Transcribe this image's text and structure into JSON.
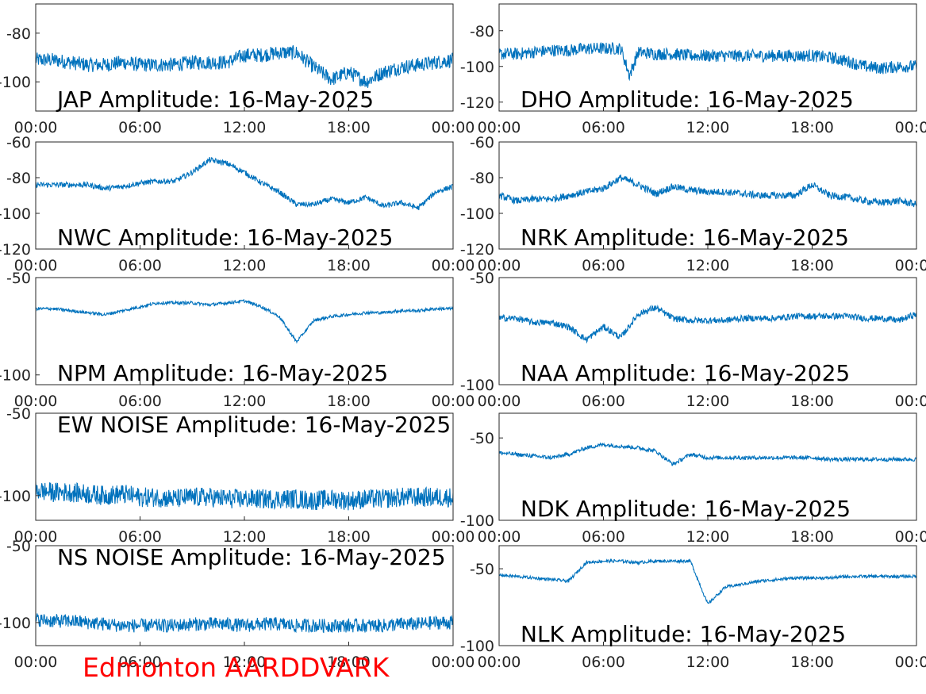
{
  "footer_text": "Edmonton AARDDVARK",
  "colors": {
    "trace": "#0072BD",
    "axis": "#262626",
    "footer": "#ff0000"
  },
  "chart_data": [
    {
      "type": "line",
      "title": "JAP Amplitude: 16-May-2025",
      "x_ticks": [
        "00:00",
        "06:00",
        "12:00",
        "18:00",
        "00:00"
      ],
      "y_ticks": [
        "-80",
        "-100"
      ],
      "y_tick_values": [
        -80,
        -100
      ],
      "ylim": [
        -112,
        -68
      ],
      "hours": [
        0,
        1,
        2,
        3,
        4,
        5,
        6,
        7,
        8,
        9,
        10,
        11,
        12,
        13,
        14,
        15,
        16,
        17,
        18,
        19,
        20,
        21,
        22,
        23,
        24
      ],
      "amplitude": [
        -91,
        -91,
        -92,
        -93,
        -93,
        -92,
        -93,
        -93,
        -93,
        -92,
        -92,
        -92,
        -89,
        -89,
        -88,
        -88,
        -94,
        -99,
        -96,
        -100,
        -96,
        -94,
        -93,
        -92,
        -91
      ],
      "noise": 3
    },
    {
      "type": "line",
      "title": "DHO Amplitude: 16-May-2025",
      "x_ticks": [
        "00:00",
        "06:00",
        "12:00",
        "18:00",
        "00:00"
      ],
      "y_ticks": [
        "-80",
        "-100",
        "-120"
      ],
      "y_tick_values": [
        -80,
        -100,
        -120
      ],
      "ylim": [
        -125,
        -65
      ],
      "hours": [
        0,
        1,
        2,
        3,
        4,
        5,
        6,
        7,
        7.5,
        8,
        9,
        10,
        11,
        12,
        13,
        14,
        15,
        16,
        17,
        18,
        19,
        20,
        21,
        22,
        23,
        24
      ],
      "amplitude": [
        -93,
        -93,
        -92,
        -91,
        -91,
        -90,
        -90,
        -90,
        -105,
        -92,
        -93,
        -93,
        -94,
        -94,
        -94,
        -94,
        -94,
        -94,
        -94,
        -94,
        -95,
        -97,
        -100,
        -101,
        -100,
        -100
      ],
      "noise": 3.5
    },
    {
      "type": "line",
      "title": "NWC Amplitude: 16-May-2025",
      "x_ticks": [
        "00:00",
        "06:00",
        "12:00",
        "18:00",
        "00:00"
      ],
      "y_ticks": [
        "-60",
        "-80",
        "-100",
        "-120"
      ],
      "y_tick_values": [
        -60,
        -80,
        -100,
        -120
      ],
      "ylim": [
        -120,
        -60
      ],
      "hours": [
        0,
        1,
        2,
        3,
        4,
        5,
        6,
        7,
        8,
        9,
        10,
        11,
        12,
        13,
        14,
        15,
        16,
        17,
        18,
        19,
        20,
        21,
        22,
        23,
        24
      ],
      "amplitude": [
        -84,
        -84,
        -84,
        -84,
        -86,
        -85,
        -83,
        -82,
        -82,
        -77,
        -70,
        -72,
        -77,
        -83,
        -88,
        -95,
        -95,
        -92,
        -94,
        -91,
        -96,
        -94,
        -97,
        -88,
        -85
      ],
      "noise": 1.5
    },
    {
      "type": "line",
      "title": "NRK Amplitude: 16-May-2025",
      "x_ticks": [
        "00:00",
        "06:00",
        "12:00",
        "18:00",
        "00:00"
      ],
      "y_ticks": [
        "-60",
        "-80",
        "-100",
        "-120"
      ],
      "y_tick_values": [
        -60,
        -80,
        -100,
        -120
      ],
      "ylim": [
        -120,
        -60
      ],
      "hours": [
        0,
        1,
        2,
        3,
        4,
        5,
        6,
        7,
        8,
        9,
        10,
        11,
        12,
        13,
        14,
        15,
        16,
        17,
        18,
        19,
        20,
        21,
        22,
        23,
        24
      ],
      "amplitude": [
        -90,
        -93,
        -92,
        -92,
        -90,
        -88,
        -86,
        -80,
        -84,
        -89,
        -85,
        -87,
        -88,
        -88,
        -89,
        -90,
        -90,
        -90,
        -84,
        -90,
        -91,
        -93,
        -94,
        -93,
        -95
      ],
      "noise": 2
    },
    {
      "type": "line",
      "title": "NPM Amplitude: 16-May-2025",
      "x_ticks": [
        "00:00",
        "06:00",
        "12:00",
        "18:00",
        "00:00"
      ],
      "y_ticks": [
        "-50",
        "-100"
      ],
      "y_tick_values": [
        -50,
        -100
      ],
      "ylim": [
        -105,
        -50
      ],
      "hours": [
        0,
        1,
        2,
        3,
        4,
        5,
        6,
        7,
        8,
        9,
        10,
        11,
        12,
        13,
        14,
        15,
        16,
        17,
        18,
        19,
        20,
        21,
        22,
        23,
        24
      ],
      "amplitude": [
        -66,
        -66,
        -67,
        -68,
        -69,
        -67,
        -65,
        -63,
        -63,
        -63,
        -64,
        -63,
        -62,
        -65,
        -70,
        -83,
        -72,
        -70,
        -69,
        -68,
        -68,
        -67,
        -67,
        -66,
        -66
      ],
      "noise": 0.8
    },
    {
      "type": "line",
      "title": "NAA Amplitude: 16-May-2025",
      "x_ticks": [
        "00:00",
        "06:00",
        "12:00",
        "18:00",
        "00:00"
      ],
      "y_ticks": [
        "-50",
        "-100"
      ],
      "y_tick_values": [
        -50,
        -100
      ],
      "ylim": [
        -100,
        -50
      ],
      "hours": [
        0,
        1,
        2,
        3,
        4,
        5,
        6,
        7,
        8,
        9,
        10,
        11,
        12,
        13,
        14,
        15,
        16,
        17,
        18,
        19,
        20,
        21,
        22,
        23,
        24
      ],
      "amplitude": [
        -69,
        -69,
        -71,
        -71,
        -73,
        -79,
        -73,
        -78,
        -67,
        -64,
        -69,
        -70,
        -70,
        -70,
        -69,
        -69,
        -69,
        -68,
        -68,
        -68,
        -68,
        -69,
        -69,
        -70,
        -67
      ],
      "noise": 1.5
    },
    {
      "type": "line",
      "title": "EW NOISE Amplitude: 16-May-2025",
      "x_ticks": [
        "00:00",
        "06:00",
        "12:00",
        "18:00",
        "00:00"
      ],
      "y_ticks": [
        "-50",
        "-100"
      ],
      "y_tick_values": [
        -50,
        -100
      ],
      "ylim": [
        -115,
        -50
      ],
      "hours": [
        0,
        1,
        2,
        3,
        4,
        5,
        6,
        7,
        8,
        9,
        10,
        11,
        12,
        13,
        14,
        15,
        16,
        17,
        18,
        19,
        20,
        21,
        22,
        23,
        24
      ],
      "amplitude": [
        -97,
        -98,
        -98,
        -99,
        -100,
        -99,
        -101,
        -101,
        -102,
        -101,
        -101,
        -102,
        -102,
        -102,
        -102,
        -102,
        -103,
        -102,
        -103,
        -102,
        -102,
        -101,
        -101,
        -101,
        -101
      ],
      "noise": 6
    },
    {
      "type": "line",
      "title": "NDK Amplitude: 16-May-2025",
      "x_ticks": [
        "00:00",
        "06:00",
        "12:00",
        "18:00",
        "00:00"
      ],
      "y_ticks": [
        "-50",
        "-100"
      ],
      "y_tick_values": [
        -50,
        -100
      ],
      "ylim": [
        -100,
        -35
      ],
      "hours": [
        0,
        1,
        2,
        3,
        4,
        5,
        6,
        7,
        8,
        9,
        10,
        11,
        12,
        13,
        14,
        15,
        16,
        17,
        18,
        19,
        20,
        21,
        22,
        23,
        24
      ],
      "amplitude": [
        -59,
        -60,
        -61,
        -62,
        -60,
        -56,
        -54,
        -55,
        -56,
        -58,
        -66,
        -60,
        -62,
        -62,
        -62,
        -62,
        -62,
        -62,
        -62,
        -63,
        -63,
        -63,
        -63,
        -63,
        -63
      ],
      "noise": 1.2
    },
    {
      "type": "line",
      "title": "NS NOISE Amplitude: 16-May-2025",
      "x_ticks": [
        "00:00",
        "06:00",
        "12:00",
        "18:00",
        "00:00"
      ],
      "y_ticks": [
        "-50",
        "-100"
      ],
      "y_tick_values": [
        -50,
        -100
      ],
      "ylim": [
        -115,
        -50
      ],
      "hours": [
        0,
        1,
        2,
        3,
        4,
        5,
        6,
        7,
        8,
        9,
        10,
        11,
        12,
        13,
        14,
        15,
        16,
        17,
        18,
        19,
        20,
        21,
        22,
        23,
        24
      ],
      "amplitude": [
        -98,
        -99,
        -99,
        -100,
        -101,
        -102,
        -102,
        -102,
        -102,
        -101,
        -101,
        -101,
        -102,
        -101,
        -101,
        -102,
        -102,
        -102,
        -102,
        -102,
        -102,
        -101,
        -101,
        -100,
        -100
      ],
      "noise": 4.5
    },
    {
      "type": "line",
      "title": "NLK Amplitude: 16-May-2025",
      "x_ticks": [
        "00:00",
        "06:00",
        "12:00",
        "18:00",
        "00:00"
      ],
      "y_ticks": [
        "-50",
        "-100"
      ],
      "y_tick_values": [
        -50,
        -100
      ],
      "ylim": [
        -100,
        -35
      ],
      "hours": [
        0,
        1,
        2,
        3,
        4,
        5,
        6,
        7,
        8,
        9,
        10,
        11,
        12,
        13,
        14,
        15,
        16,
        17,
        18,
        19,
        20,
        21,
        22,
        23,
        24
      ],
      "amplitude": [
        -54,
        -55,
        -56,
        -57,
        -58,
        -46,
        -45,
        -45,
        -46,
        -45,
        -45,
        -45,
        -73,
        -62,
        -60,
        -58,
        -57,
        -56,
        -56,
        -56,
        -55,
        -55,
        -55,
        -55,
        -55
      ],
      "noise": 1
    }
  ]
}
